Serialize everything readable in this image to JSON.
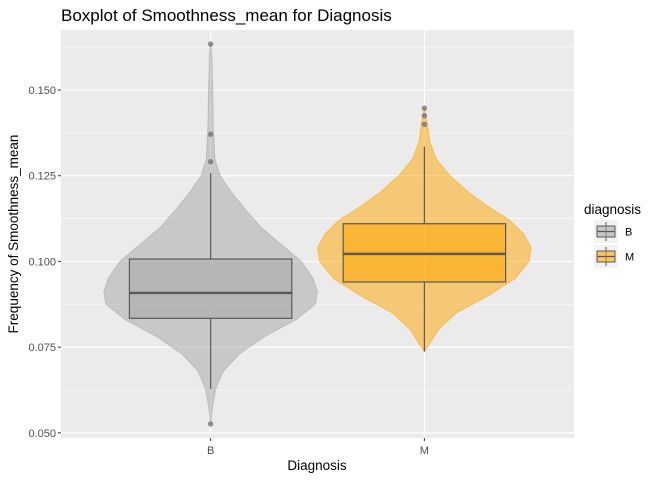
{
  "chart_data": {
    "type": "boxplot+violin",
    "title": "Boxplot of Smoothness_mean for Diagnosis",
    "xlabel": "Diagnosis",
    "ylabel": "Frequency of Smoothness_mean",
    "categories": [
      "B",
      "M"
    ],
    "ylim": [
      0.0485,
      0.1675
    ],
    "yticks": [
      0.05,
      0.075,
      0.1,
      0.125,
      0.15
    ],
    "ytick_labels": [
      "0.050",
      "0.075",
      "0.100",
      "0.125",
      "0.150"
    ],
    "grid": true,
    "legend": {
      "title": "diagnosis",
      "position": "right",
      "items": [
        {
          "label": "B",
          "color": "#a6a6a6"
        },
        {
          "label": "M",
          "color": "#ffa500"
        }
      ]
    },
    "series": [
      {
        "name": "B",
        "fill": "#a6a6a6",
        "q1": 0.0834,
        "median": 0.0908,
        "q3": 0.1007,
        "whisker_low": 0.0628,
        "whisker_high": 0.1257,
        "outliers": [
          0.0526,
          0.1291,
          0.1371,
          0.1634
        ],
        "violin": [
          [
            0.0526,
            0.0
          ],
          [
            0.058,
            0.02
          ],
          [
            0.063,
            0.05
          ],
          [
            0.068,
            0.12
          ],
          [
            0.073,
            0.27
          ],
          [
            0.078,
            0.5
          ],
          [
            0.083,
            0.8
          ],
          [
            0.0875,
            0.98
          ],
          [
            0.091,
            1.0
          ],
          [
            0.095,
            0.96
          ],
          [
            0.1,
            0.85
          ],
          [
            0.105,
            0.66
          ],
          [
            0.11,
            0.47
          ],
          [
            0.115,
            0.33
          ],
          [
            0.12,
            0.2
          ],
          [
            0.125,
            0.09
          ],
          [
            0.13,
            0.04
          ],
          [
            0.14,
            0.025
          ],
          [
            0.15,
            0.02
          ],
          [
            0.16,
            0.012
          ],
          [
            0.1634,
            0.0
          ]
        ]
      },
      {
        "name": "M",
        "fill": "#ffa500",
        "q1": 0.094,
        "median": 0.1022,
        "q3": 0.111,
        "whisker_low": 0.0737,
        "whisker_high": 0.1335,
        "outliers": [
          0.14,
          0.1425,
          0.1447
        ],
        "violin": [
          [
            0.0737,
            0.0
          ],
          [
            0.076,
            0.05
          ],
          [
            0.08,
            0.13
          ],
          [
            0.085,
            0.3
          ],
          [
            0.09,
            0.6
          ],
          [
            0.095,
            0.85
          ],
          [
            0.1,
            0.98
          ],
          [
            0.104,
            1.0
          ],
          [
            0.108,
            0.93
          ],
          [
            0.112,
            0.8
          ],
          [
            0.116,
            0.6
          ],
          [
            0.12,
            0.42
          ],
          [
            0.125,
            0.24
          ],
          [
            0.13,
            0.11
          ],
          [
            0.135,
            0.05
          ],
          [
            0.14,
            0.03
          ],
          [
            0.1447,
            0.0
          ]
        ]
      }
    ]
  }
}
